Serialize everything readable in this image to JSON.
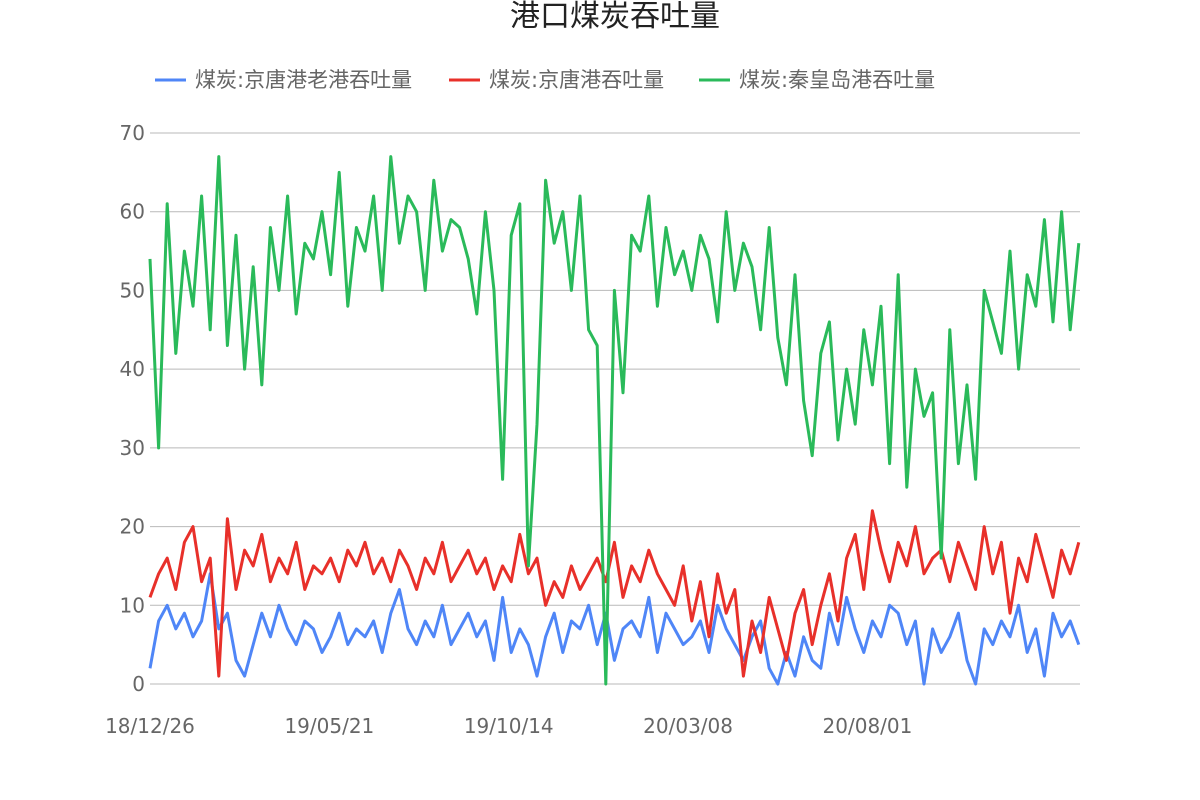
{
  "chart_data": {
    "type": "line",
    "title": "港口煤炭吞吐量",
    "xlabel": "",
    "ylabel": "",
    "ylim": [
      0,
      70
    ],
    "yticks": [
      0,
      10,
      20,
      30,
      40,
      50,
      60,
      70
    ],
    "xlim": [
      "2018-12-26",
      "2021-01-21"
    ],
    "x_tick_labels": [
      "18/12/26",
      "19/05/21",
      "19/10/14",
      "20/03/08",
      "20/08/01"
    ],
    "legend_position": "top",
    "grid": true,
    "sampling": "approximate weekly readings traced from the plotted daily series",
    "x": [
      "2018-12-26",
      "2019-01-02",
      "2019-01-09",
      "2019-01-16",
      "2019-01-23",
      "2019-01-30",
      "2019-02-06",
      "2019-02-13",
      "2019-02-20",
      "2019-02-27",
      "2019-03-06",
      "2019-03-13",
      "2019-03-20",
      "2019-03-27",
      "2019-04-03",
      "2019-04-10",
      "2019-04-17",
      "2019-04-24",
      "2019-05-01",
      "2019-05-08",
      "2019-05-15",
      "2019-05-22",
      "2019-05-29",
      "2019-06-05",
      "2019-06-12",
      "2019-06-19",
      "2019-06-26",
      "2019-07-03",
      "2019-07-10",
      "2019-07-17",
      "2019-07-24",
      "2019-07-31",
      "2019-08-07",
      "2019-08-14",
      "2019-08-21",
      "2019-08-28",
      "2019-09-04",
      "2019-09-11",
      "2019-09-18",
      "2019-09-25",
      "2019-10-02",
      "2019-10-09",
      "2019-10-16",
      "2019-10-23",
      "2019-10-30",
      "2019-11-06",
      "2019-11-13",
      "2019-11-20",
      "2019-11-27",
      "2019-12-04",
      "2019-12-11",
      "2019-12-18",
      "2019-12-25",
      "2020-01-01",
      "2020-01-08",
      "2020-01-15",
      "2020-01-22",
      "2020-01-29",
      "2020-02-05",
      "2020-02-12",
      "2020-02-19",
      "2020-02-26",
      "2020-03-04",
      "2020-03-11",
      "2020-03-18",
      "2020-03-25",
      "2020-04-01",
      "2020-04-08",
      "2020-04-15",
      "2020-04-22",
      "2020-04-29",
      "2020-05-06",
      "2020-05-13",
      "2020-05-20",
      "2020-05-27",
      "2020-06-03",
      "2020-06-10",
      "2020-06-17",
      "2020-06-24",
      "2020-07-01",
      "2020-07-08",
      "2020-07-15",
      "2020-07-22",
      "2020-07-29",
      "2020-08-05",
      "2020-08-12",
      "2020-08-19",
      "2020-08-26",
      "2020-09-02",
      "2020-09-09",
      "2020-09-16",
      "2020-09-23",
      "2020-09-30",
      "2020-10-07",
      "2020-10-14",
      "2020-10-21",
      "2020-10-28",
      "2020-11-04",
      "2020-11-11",
      "2020-11-18",
      "2020-11-25",
      "2020-12-02",
      "2020-12-09",
      "2020-12-16",
      "2020-12-23",
      "2020-12-30",
      "2021-01-06",
      "2021-01-13",
      "2021-01-20"
    ],
    "series": [
      {
        "name": "煤炭:京唐港老港吞吐量",
        "color": "#4f86f7",
        "values": [
          2,
          8,
          10,
          7,
          9,
          6,
          8,
          14,
          7,
          9,
          3,
          1,
          5,
          9,
          6,
          10,
          7,
          5,
          8,
          7,
          4,
          6,
          9,
          5,
          7,
          6,
          8,
          4,
          9,
          12,
          7,
          5,
          8,
          6,
          10,
          5,
          7,
          9,
          6,
          8,
          3,
          11,
          4,
          7,
          5,
          1,
          6,
          9,
          4,
          8,
          7,
          10,
          5,
          9,
          3,
          7,
          8,
          6,
          11,
          4,
          9,
          7,
          5,
          6,
          8,
          4,
          10,
          7,
          5,
          3,
          6,
          8,
          2,
          0,
          4,
          1,
          6,
          3,
          2,
          9,
          5,
          11,
          7,
          4,
          8,
          6,
          10,
          9,
          5,
          8,
          0,
          7,
          4,
          6,
          9,
          3,
          0,
          7,
          5,
          8,
          6,
          10,
          4,
          7,
          1,
          9,
          6,
          8,
          5
        ]
      },
      {
        "name": "煤炭:京唐港吞吐量",
        "color": "#e8302a",
        "values": [
          11,
          14,
          16,
          12,
          18,
          20,
          13,
          16,
          1,
          21,
          12,
          17,
          15,
          19,
          13,
          16,
          14,
          18,
          12,
          15,
          14,
          16,
          13,
          17,
          15,
          18,
          14,
          16,
          13,
          17,
          15,
          12,
          16,
          14,
          18,
          13,
          15,
          17,
          14,
          16,
          12,
          15,
          13,
          19,
          14,
          16,
          10,
          13,
          11,
          15,
          12,
          14,
          16,
          13,
          18,
          11,
          15,
          13,
          17,
          14,
          12,
          10,
          15,
          8,
          13,
          6,
          14,
          9,
          12,
          1,
          8,
          4,
          11,
          7,
          3,
          9,
          12,
          5,
          10,
          14,
          8,
          16,
          19,
          12,
          22,
          17,
          13,
          18,
          15,
          20,
          14,
          16,
          17,
          13,
          18,
          15,
          12,
          20,
          14,
          18,
          9,
          16,
          13,
          19,
          15,
          11,
          17,
          14,
          18
        ]
      },
      {
        "name": "煤炭:秦皇岛港吞吐量",
        "color": "#2aba5a",
        "values": [
          54,
          30,
          61,
          42,
          55,
          48,
          62,
          45,
          67,
          43,
          57,
          40,
          53,
          38,
          58,
          50,
          62,
          47,
          56,
          54,
          60,
          52,
          65,
          48,
          58,
          55,
          62,
          50,
          67,
          56,
          62,
          60,
          50,
          64,
          55,
          59,
          58,
          54,
          47,
          60,
          50,
          26,
          57,
          61,
          15,
          33,
          64,
          56,
          60,
          50,
          62,
          45,
          43,
          0,
          50,
          37,
          57,
          55,
          62,
          48,
          58,
          52,
          55,
          50,
          57,
          54,
          46,
          60,
          50,
          56,
          53,
          45,
          58,
          44,
          38,
          52,
          36,
          29,
          42,
          46,
          31,
          40,
          33,
          45,
          38,
          48,
          28,
          52,
          25,
          40,
          34,
          37,
          16,
          45,
          28,
          38,
          26,
          50,
          46,
          42,
          55,
          40,
          52,
          48,
          59,
          46,
          60,
          45,
          56
        ]
      }
    ]
  }
}
